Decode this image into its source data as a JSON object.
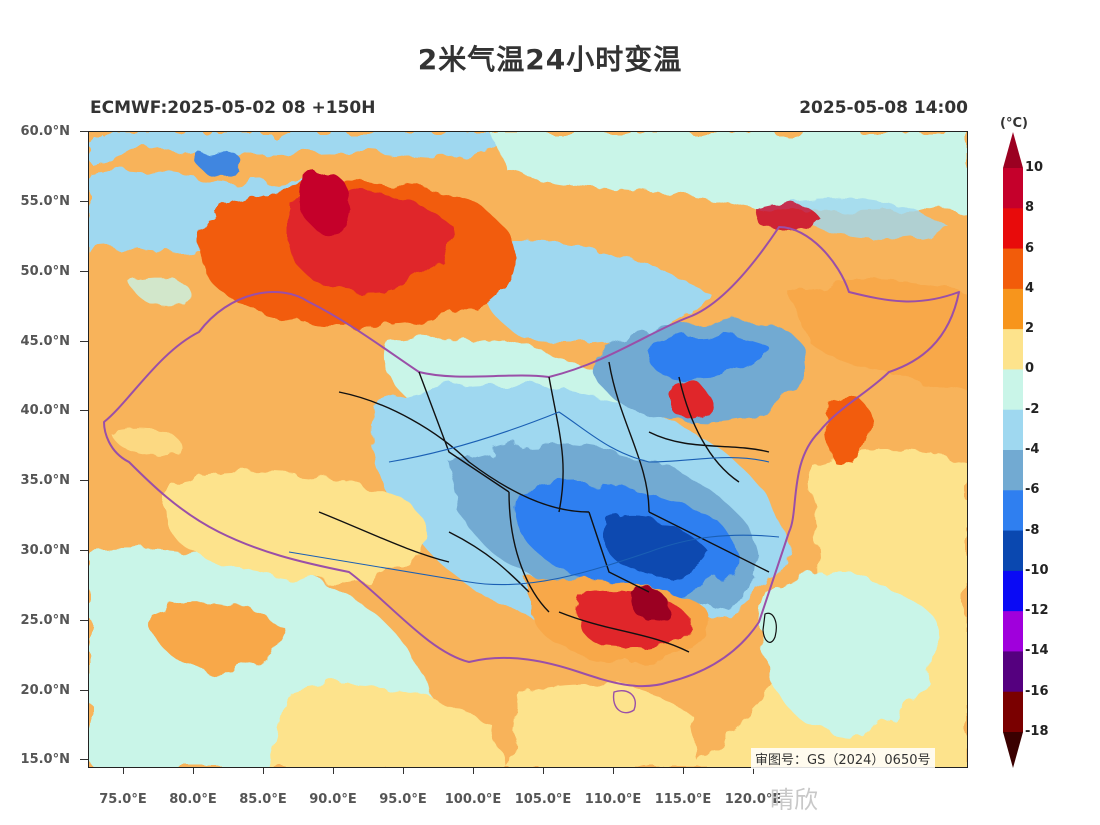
{
  "title": "2米气温24小时变温",
  "subtitle_left": "ECMWF:2025-05-02 08 +150H",
  "subtitle_right": "2025-05-08 14:00",
  "colorbar": {
    "unit": "(°C)",
    "labels": [
      "10",
      "8",
      "6",
      "4",
      "2",
      "0",
      "-2",
      "-4",
      "-6",
      "-8",
      "-10",
      "-12",
      "-14",
      "-16",
      "-18"
    ],
    "colors": [
      "#9b0021",
      "#c5002b",
      "#e80b0b",
      "#f25c0a",
      "#f7951c",
      "#fde38c",
      "#c9f5e8",
      "#9fd8f0",
      "#72aad2",
      "#2f7ff0",
      "#0a48b0",
      "#0a0af5",
      "#a000dc",
      "#55007f",
      "#7a0000",
      "#3a0000"
    ]
  },
  "axes": {
    "lat_labels": [
      "60.0°N",
      "55.0°N",
      "50.0°N",
      "45.0°N",
      "40.0°N",
      "35.0°N",
      "30.0°N",
      "25.0°N",
      "20.0°N",
      "15.0°N"
    ],
    "lon_labels": [
      "75.0°E",
      "80.0°E",
      "85.0°E",
      "90.0°E",
      "95.0°E",
      "100.0°E",
      "105.0°E",
      "110.0°E",
      "115.0°E",
      "120.0°E"
    ]
  },
  "stamp": "审图号：GS（2024）0650号",
  "watermark": "晴欣"
}
